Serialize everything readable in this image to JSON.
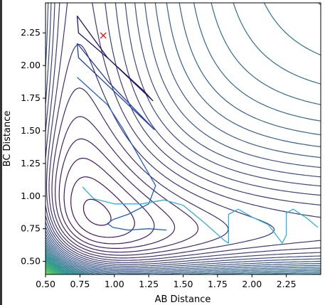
{
  "chart_data": {
    "type": "contour",
    "xlabel": "AB Distance",
    "ylabel": "BC Distance",
    "xlim": [
      0.5,
      2.5
    ],
    "ylim": [
      0.4,
      2.48
    ],
    "xticks": [
      "0.50",
      "0.75",
      "1.00",
      "1.25",
      "1.50",
      "1.75",
      "2.00",
      "2.25"
    ],
    "yticks": [
      "0.50",
      "0.75",
      "1.00",
      "1.25",
      "1.50",
      "1.75",
      "2.00",
      "2.25"
    ],
    "colormap": "viridis",
    "start_marker": {
      "x": 0.92,
      "y": 2.23,
      "symbol": "x",
      "color": "#ff0000"
    },
    "trajectory_loops": [
      {
        "color": "#24166e",
        "points": [
          [
            0.73,
            2.38
          ],
          [
            0.95,
            2.06
          ],
          [
            1.28,
            1.73
          ],
          [
            1.22,
            1.8
          ],
          [
            0.96,
            2.05
          ],
          [
            0.74,
            2.25
          ],
          [
            0.73,
            2.38
          ]
        ]
      },
      {
        "color": "#1c3ca8",
        "points": [
          [
            0.73,
            2.17
          ],
          [
            0.96,
            1.87
          ],
          [
            1.29,
            1.51
          ],
          [
            1.22,
            1.58
          ],
          [
            0.98,
            1.82
          ],
          [
            0.74,
            2.06
          ],
          [
            0.73,
            2.17
          ]
        ]
      },
      {
        "color": "#1f5ccc",
        "points": [
          [
            0.73,
            1.91
          ],
          [
            0.95,
            1.7
          ],
          [
            1.06,
            1.52
          ],
          [
            1.18,
            1.3
          ],
          [
            1.3,
            1.08
          ],
          [
            1.25,
            0.94
          ],
          [
            1.1,
            0.86
          ],
          [
            0.99,
            0.82
          ],
          [
            0.95,
            0.79
          ],
          [
            0.99,
            0.76
          ],
          [
            1.1,
            0.74
          ],
          [
            1.25,
            0.75
          ],
          [
            1.38,
            0.74
          ]
        ]
      },
      {
        "color": "#2db0e0",
        "points": [
          [
            0.77,
            1.07
          ],
          [
            0.85,
            0.98
          ],
          [
            1.0,
            0.94
          ],
          [
            1.2,
            0.94
          ],
          [
            1.36,
            0.97
          ],
          [
            1.5,
            0.93
          ],
          [
            1.65,
            0.8
          ],
          [
            1.8,
            0.66
          ],
          [
            1.83,
            0.64
          ],
          [
            1.83,
            0.86
          ],
          [
            1.9,
            0.9
          ],
          [
            2.0,
            0.84
          ],
          [
            2.12,
            0.78
          ],
          [
            2.22,
            0.64
          ],
          [
            2.25,
            0.7
          ],
          [
            2.25,
            0.87
          ],
          [
            2.3,
            0.9
          ],
          [
            2.4,
            0.83
          ],
          [
            2.48,
            0.76
          ]
        ]
      }
    ]
  }
}
